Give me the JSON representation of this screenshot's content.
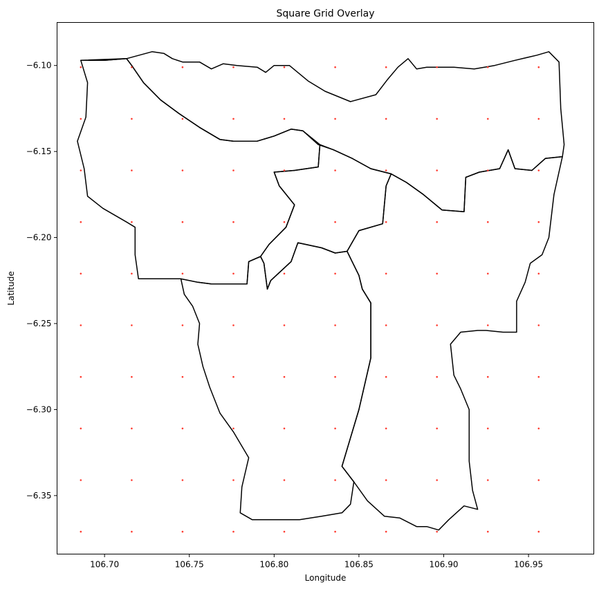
{
  "chart_data": {
    "type": "scatter",
    "title": "Square Grid Overlay",
    "xlabel": "Longitude",
    "ylabel": "Latitude",
    "xlim": [
      106.672,
      106.9885
    ],
    "ylim": [
      -6.384,
      -6.075
    ],
    "xticks": [
      {
        "value": 106.7,
        "label": "106.70"
      },
      {
        "value": 106.75,
        "label": "106.75"
      },
      {
        "value": 106.8,
        "label": "106.80"
      },
      {
        "value": 106.85,
        "label": "106.85"
      },
      {
        "value": 106.9,
        "label": "106.90"
      },
      {
        "value": 106.95,
        "label": "106.95"
      }
    ],
    "yticks": [
      {
        "value": -6.1,
        "label": "−6.10"
      },
      {
        "value": -6.15,
        "label": "−6.15"
      },
      {
        "value": -6.2,
        "label": "−6.20"
      },
      {
        "value": -6.25,
        "label": "−6.25"
      },
      {
        "value": -6.3,
        "label": "−6.30"
      },
      {
        "value": -6.35,
        "label": "−6.35"
      }
    ],
    "grid": false,
    "grid_points": {
      "x": [
        106.686,
        106.716,
        106.746,
        106.776,
        106.806,
        106.836,
        106.866,
        106.896,
        106.926,
        106.956
      ],
      "y": [
        -6.101,
        -6.131,
        -6.161,
        -6.191,
        -6.221,
        -6.251,
        -6.281,
        -6.311,
        -6.341,
        -6.371
      ],
      "color": "#ff3b30"
    },
    "boundary_color": "#000000",
    "boundaries": [
      [
        [
          106.686,
          -6.097
        ],
        [
          106.7,
          -6.097
        ],
        [
          106.713,
          -6.096
        ],
        [
          106.728,
          -6.092
        ],
        [
          106.735,
          -6.093
        ],
        [
          106.74,
          -6.096
        ],
        [
          106.746,
          -6.098
        ],
        [
          106.756,
          -6.098
        ],
        [
          106.763,
          -6.102
        ],
        [
          106.77,
          -6.099
        ],
        [
          106.778,
          -6.1
        ],
        [
          106.79,
          -6.101
        ],
        [
          106.795,
          -6.104
        ],
        [
          106.8,
          -6.1
        ],
        [
          106.809,
          -6.1
        ],
        [
          106.82,
          -6.109
        ],
        [
          106.83,
          -6.115
        ],
        [
          106.845,
          -6.121
        ],
        [
          106.86,
          -6.117
        ],
        [
          106.867,
          -6.108
        ],
        [
          106.873,
          -6.101
        ],
        [
          106.879,
          -6.096
        ],
        [
          106.884,
          -6.102
        ],
        [
          106.89,
          -6.101
        ],
        [
          106.906,
          -6.101
        ],
        [
          106.918,
          -6.102
        ],
        [
          106.93,
          -6.1
        ],
        [
          106.942,
          -6.097
        ],
        [
          106.955,
          -6.094
        ],
        [
          106.962,
          -6.092
        ],
        [
          106.968,
          -6.098
        ],
        [
          106.969,
          -6.125
        ],
        [
          106.971,
          -6.146
        ],
        [
          106.97,
          -6.153
        ],
        [
          106.96,
          -6.154
        ],
        [
          106.952,
          -6.161
        ],
        [
          106.942,
          -6.16
        ],
        [
          106.938,
          -6.149
        ],
        [
          106.933,
          -6.16
        ],
        [
          106.921,
          -6.162
        ],
        [
          106.913,
          -6.165
        ],
        [
          106.912,
          -6.185
        ],
        [
          106.899,
          -6.184
        ],
        [
          106.888,
          -6.175
        ],
        [
          106.878,
          -6.168
        ],
        [
          106.869,
          -6.163
        ],
        [
          106.857,
          -6.16
        ],
        [
          106.846,
          -6.154
        ],
        [
          106.835,
          -6.149
        ],
        [
          106.826,
          -6.146
        ],
        [
          106.817,
          -6.138
        ],
        [
          106.81,
          -6.137
        ],
        [
          106.8,
          -6.141
        ],
        [
          106.79,
          -6.144
        ],
        [
          106.776,
          -6.144
        ],
        [
          106.768,
          -6.143
        ],
        [
          106.756,
          -6.136
        ],
        [
          106.744,
          -6.128
        ],
        [
          106.733,
          -6.12
        ],
        [
          106.723,
          -6.11
        ],
        [
          106.716,
          -6.1
        ],
        [
          106.713,
          -6.096
        ]
      ],
      [
        [
          106.686,
          -6.097
        ],
        [
          106.69,
          -6.11
        ],
        [
          106.689,
          -6.13
        ],
        [
          106.684,
          -6.144
        ],
        [
          106.688,
          -6.16
        ],
        [
          106.69,
          -6.176
        ],
        [
          106.699,
          -6.183
        ],
        [
          106.713,
          -6.191
        ],
        [
          106.718,
          -6.194
        ],
        [
          106.718,
          -6.21
        ],
        [
          106.72,
          -6.224
        ],
        [
          106.745,
          -6.224
        ],
        [
          106.755,
          -6.226
        ],
        [
          106.763,
          -6.227
        ],
        [
          106.775,
          -6.227
        ],
        [
          106.784,
          -6.227
        ],
        [
          106.785,
          -6.214
        ],
        [
          106.792,
          -6.211
        ],
        [
          106.797,
          -6.204
        ],
        [
          106.807,
          -6.194
        ],
        [
          106.812,
          -6.181
        ],
        [
          106.803,
          -6.17
        ],
        [
          106.8,
          -6.162
        ],
        [
          106.812,
          -6.161
        ],
        [
          106.826,
          -6.159
        ],
        [
          106.827,
          -6.146
        ],
        [
          106.817,
          -6.138
        ],
        [
          106.81,
          -6.137
        ],
        [
          106.8,
          -6.141
        ],
        [
          106.79,
          -6.144
        ],
        [
          106.776,
          -6.144
        ],
        [
          106.768,
          -6.143
        ],
        [
          106.756,
          -6.136
        ],
        [
          106.744,
          -6.128
        ],
        [
          106.733,
          -6.12
        ],
        [
          106.723,
          -6.11
        ],
        [
          106.716,
          -6.1
        ],
        [
          106.713,
          -6.096
        ],
        [
          106.7,
          -6.097
        ],
        [
          106.686,
          -6.097
        ]
      ],
      [
        [
          106.8,
          -6.162
        ],
        [
          106.812,
          -6.161
        ],
        [
          106.826,
          -6.159
        ],
        [
          106.827,
          -6.146
        ],
        [
          106.835,
          -6.149
        ],
        [
          106.846,
          -6.154
        ],
        [
          106.857,
          -6.16
        ],
        [
          106.869,
          -6.163
        ],
        [
          106.866,
          -6.17
        ],
        [
          106.864,
          -6.192
        ],
        [
          106.85,
          -6.196
        ],
        [
          106.843,
          -6.208
        ],
        [
          106.836,
          -6.209
        ],
        [
          106.828,
          -6.206
        ],
        [
          106.814,
          -6.203
        ],
        [
          106.81,
          -6.214
        ],
        [
          106.798,
          -6.225
        ],
        [
          106.796,
          -6.23
        ],
        [
          106.794,
          -6.215
        ],
        [
          106.792,
          -6.211
        ],
        [
          106.797,
          -6.204
        ],
        [
          106.807,
          -6.194
        ],
        [
          106.812,
          -6.181
        ],
        [
          106.803,
          -6.17
        ],
        [
          106.8,
          -6.162
        ]
      ],
      [
        [
          106.869,
          -6.163
        ],
        [
          106.878,
          -6.168
        ],
        [
          106.888,
          -6.175
        ],
        [
          106.899,
          -6.184
        ],
        [
          106.912,
          -6.185
        ],
        [
          106.913,
          -6.165
        ],
        [
          106.921,
          -6.162
        ],
        [
          106.933,
          -6.16
        ],
        [
          106.938,
          -6.149
        ],
        [
          106.942,
          -6.16
        ],
        [
          106.952,
          -6.161
        ],
        [
          106.96,
          -6.154
        ],
        [
          106.97,
          -6.153
        ],
        [
          106.965,
          -6.175
        ],
        [
          106.962,
          -6.2
        ],
        [
          106.958,
          -6.21
        ],
        [
          106.951,
          -6.215
        ],
        [
          106.948,
          -6.226
        ],
        [
          106.943,
          -6.237
        ],
        [
          106.943,
          -6.255
        ],
        [
          106.935,
          -6.255
        ],
        [
          106.925,
          -6.254
        ],
        [
          106.92,
          -6.254
        ],
        [
          106.91,
          -6.255
        ],
        [
          106.904,
          -6.262
        ],
        [
          106.906,
          -6.28
        ],
        [
          106.91,
          -6.288
        ],
        [
          106.915,
          -6.3
        ],
        [
          106.915,
          -6.33
        ],
        [
          106.917,
          -6.347
        ],
        [
          106.92,
          -6.358
        ],
        [
          106.912,
          -6.356
        ],
        [
          106.903,
          -6.364
        ],
        [
          106.897,
          -6.37
        ],
        [
          106.89,
          -6.368
        ],
        [
          106.884,
          -6.368
        ],
        [
          106.874,
          -6.363
        ],
        [
          106.865,
          -6.362
        ],
        [
          106.855,
          -6.353
        ],
        [
          106.847,
          -6.342
        ],
        [
          106.84,
          -6.333
        ],
        [
          106.85,
          -6.3
        ],
        [
          106.857,
          -6.27
        ],
        [
          106.857,
          -6.238
        ],
        [
          106.852,
          -6.23
        ],
        [
          106.85,
          -6.222
        ],
        [
          106.846,
          -6.214
        ],
        [
          106.843,
          -6.208
        ],
        [
          106.85,
          -6.196
        ],
        [
          106.864,
          -6.192
        ],
        [
          106.866,
          -6.17
        ],
        [
          106.869,
          -6.163
        ]
      ],
      [
        [
          106.745,
          -6.224
        ],
        [
          106.755,
          -6.226
        ],
        [
          106.763,
          -6.227
        ],
        [
          106.775,
          -6.227
        ],
        [
          106.784,
          -6.227
        ],
        [
          106.785,
          -6.214
        ],
        [
          106.792,
          -6.211
        ],
        [
          106.794,
          -6.215
        ],
        [
          106.796,
          -6.23
        ],
        [
          106.798,
          -6.225
        ],
        [
          106.81,
          -6.214
        ],
        [
          106.814,
          -6.203
        ],
        [
          106.828,
          -6.206
        ],
        [
          106.836,
          -6.209
        ],
        [
          106.843,
          -6.208
        ],
        [
          106.846,
          -6.214
        ],
        [
          106.85,
          -6.222
        ],
        [
          106.852,
          -6.23
        ],
        [
          106.857,
          -6.238
        ],
        [
          106.857,
          -6.27
        ],
        [
          106.85,
          -6.3
        ],
        [
          106.84,
          -6.333
        ],
        [
          106.847,
          -6.342
        ],
        [
          106.845,
          -6.355
        ],
        [
          106.84,
          -6.36
        ],
        [
          106.828,
          -6.362
        ],
        [
          106.815,
          -6.364
        ],
        [
          106.798,
          -6.364
        ],
        [
          106.787,
          -6.364
        ],
        [
          106.78,
          -6.36
        ],
        [
          106.781,
          -6.345
        ],
        [
          106.785,
          -6.328
        ],
        [
          106.776,
          -6.313
        ],
        [
          106.768,
          -6.302
        ],
        [
          106.762,
          -6.287
        ],
        [
          106.758,
          -6.275
        ],
        [
          106.755,
          -6.262
        ],
        [
          106.756,
          -6.25
        ],
        [
          106.752,
          -6.24
        ],
        [
          106.747,
          -6.233
        ],
        [
          106.745,
          -6.224
        ]
      ]
    ]
  }
}
